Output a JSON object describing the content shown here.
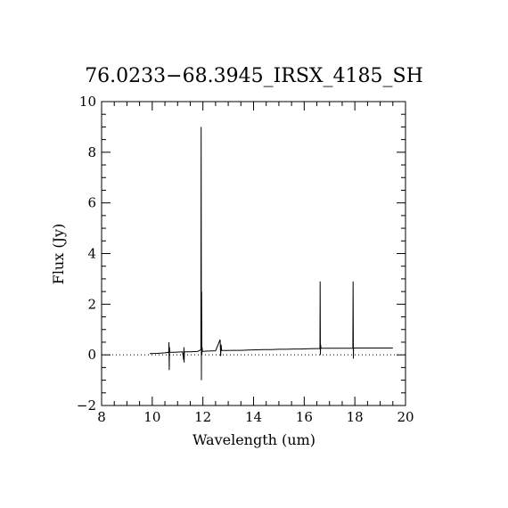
{
  "chart_data": {
    "type": "line",
    "title": "76.0233−68.3945_IRSX_4185_SH",
    "xlabel": "Wavelength (um)",
    "ylabel": "Flux (Jy)",
    "xlim": [
      8,
      20
    ],
    "ylim": [
      -2,
      10
    ],
    "xticks": [
      8,
      10,
      12,
      14,
      16,
      18,
      20
    ],
    "yticks": [
      -2,
      0,
      2,
      4,
      6,
      8,
      10
    ],
    "xtick_labels": [
      "8",
      "10",
      "12",
      "14",
      "16",
      "18",
      "20"
    ],
    "ytick_labels": [
      "−2",
      "0",
      "2",
      "4",
      "6",
      "8",
      "10"
    ],
    "zero_line": "dotted",
    "grid": false,
    "legend": "none",
    "series": [
      {
        "x": [
          9.9,
          10.2,
          10.5,
          10.65,
          10.66,
          10.67,
          10.68,
          10.69,
          10.9,
          11.2,
          11.24,
          11.25,
          11.26,
          11.27,
          11.28,
          11.5,
          11.8,
          11.92,
          11.93,
          11.94,
          11.95,
          11.96,
          11.97,
          11.98,
          11.99,
          12.0,
          12.02,
          12.2,
          12.5,
          12.68,
          12.7,
          12.72,
          12.74,
          12.9,
          13.2,
          13.5,
          13.8,
          14.1,
          14.4,
          14.7,
          15.0,
          15.3,
          15.6,
          15.9,
          16.2,
          16.5,
          16.62,
          16.63,
          16.64,
          16.65,
          16.66,
          16.8,
          17.2,
          17.6,
          17.92,
          17.93,
          17.94,
          17.95,
          17.96,
          18.3,
          18.7,
          19.1,
          19.5
        ],
        "y": [
          0.05,
          0.06,
          0.08,
          0.1,
          0.5,
          -0.6,
          0.3,
          0.1,
          0.1,
          0.12,
          -0.2,
          0.3,
          -0.3,
          0.1,
          0.12,
          0.12,
          0.14,
          0.2,
          9.0,
          -1.0,
          2.5,
          0.0,
          0.3,
          0.15,
          0.14,
          0.14,
          0.14,
          0.15,
          0.16,
          0.6,
          -0.05,
          0.4,
          0.17,
          0.17,
          0.18,
          0.18,
          0.19,
          0.2,
          0.21,
          0.21,
          0.22,
          0.22,
          0.23,
          0.23,
          0.24,
          0.25,
          0.25,
          2.9,
          0.0,
          0.4,
          0.26,
          0.26,
          0.26,
          0.26,
          0.26,
          2.9,
          -0.15,
          0.27,
          0.27,
          0.27,
          0.27,
          0.27,
          0.27
        ]
      }
    ]
  }
}
